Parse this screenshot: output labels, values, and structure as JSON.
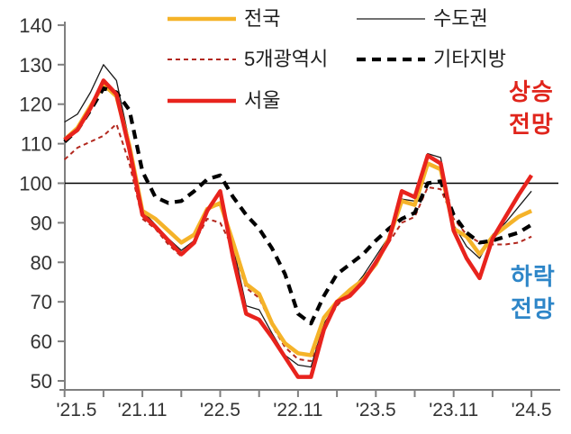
{
  "chart_data": {
    "type": "line",
    "title": "",
    "xlabel": "",
    "ylabel": "",
    "ylim": [
      50,
      140
    ],
    "y_ticks": [
      140,
      130,
      120,
      110,
      100,
      90,
      80,
      70,
      60,
      50
    ],
    "reference_line": 100,
    "grid": false,
    "legend_position": "top",
    "tick_interval_months": 3,
    "label_interval_months": 6,
    "x_tick_labels": [
      "'21.5",
      "'21.11",
      "'22.5",
      "'22.11",
      "'23.5",
      "'23.11",
      "'24.5"
    ],
    "x": [
      "21.05",
      "21.06",
      "21.07",
      "21.08",
      "21.09",
      "21.10",
      "21.11",
      "21.12",
      "22.01",
      "22.02",
      "22.03",
      "22.04",
      "22.05",
      "22.06",
      "22.07",
      "22.08",
      "22.09",
      "22.10",
      "22.11",
      "22.12",
      "23.01",
      "23.02",
      "23.03",
      "23.04",
      "23.05",
      "23.06",
      "23.07",
      "23.08",
      "23.09",
      "23.10",
      "23.11",
      "23.12",
      "24.01",
      "24.02",
      "24.03",
      "24.04",
      "24.05"
    ],
    "series": [
      {
        "name": "전국",
        "key": "nationwide",
        "color": "#F5B329",
        "width": 4.5,
        "dash": null,
        "z": 3,
        "values": [
          111,
          114,
          119.5,
          125,
          122,
          109.5,
          93,
          91,
          88,
          85,
          87,
          93.5,
          95,
          85,
          74.5,
          72,
          64.5,
          59.5,
          57,
          56.5,
          66,
          70,
          73,
          75.5,
          79.5,
          86,
          95.5,
          94.5,
          105,
          103.5,
          88.5,
          86.5,
          82,
          86.5,
          89,
          91.5,
          93
        ]
      },
      {
        "name": "수도권",
        "key": "sudogwon",
        "color": "#1a1a1a",
        "width": 1.3,
        "dash": null,
        "z": 1,
        "values": [
          115.5,
          117.5,
          123,
          130,
          126,
          110.5,
          93,
          89.5,
          86,
          83,
          85.5,
          93.5,
          94.5,
          84,
          69,
          68,
          62,
          56.5,
          54,
          53.5,
          64.5,
          69.5,
          72.5,
          76.5,
          81.5,
          86.5,
          96,
          95.5,
          107.5,
          106.5,
          89.5,
          84,
          81,
          87,
          90,
          94,
          98
        ]
      },
      {
        "name": "5개광역시",
        "key": "five-metro-cities",
        "color": "#B2281E",
        "width": 2,
        "dash": "5,4",
        "z": 2,
        "values": [
          106,
          109,
          110.5,
          112,
          115,
          105,
          91,
          88.5,
          84.5,
          81.5,
          85,
          91,
          90,
          83.5,
          73.5,
          71,
          64,
          58.5,
          55.5,
          55,
          63.5,
          69,
          72.5,
          76,
          80,
          85,
          90,
          91.5,
          99,
          98.5,
          91,
          87,
          85,
          84.5,
          84.5,
          85,
          86.5
        ]
      },
      {
        "name": "기타지방",
        "key": "other-regions",
        "color": "#000000",
        "width": 4.2,
        "dash": "10,7",
        "z": 4,
        "values": [
          110.5,
          113.5,
          118.5,
          124,
          123,
          118.5,
          103,
          96.5,
          95,
          95.5,
          98,
          101,
          102,
          96.5,
          92,
          88.5,
          83.5,
          77,
          67,
          64.5,
          71.5,
          77,
          79.5,
          82,
          85.5,
          88.5,
          91,
          92.5,
          100,
          100.5,
          92,
          87.5,
          85,
          85.5,
          86.5,
          87.5,
          89.5
        ]
      },
      {
        "name": "서울",
        "key": "seoul",
        "color": "#E8231D",
        "width": 4.5,
        "dash": null,
        "z": 5,
        "values": [
          111,
          113.5,
          119,
          126,
          122.5,
          108.5,
          92,
          89,
          85.5,
          82,
          85,
          93,
          98,
          81,
          67,
          65.5,
          61,
          56,
          51,
          51,
          63,
          70,
          71.5,
          75,
          80,
          85.5,
          98,
          96.5,
          107,
          105,
          88,
          81,
          76,
          86,
          91.5,
          97,
          102
        ]
      }
    ],
    "annotations": [
      {
        "text": "상승\n전망",
        "color": "#E0251C",
        "position": "right-upper"
      },
      {
        "text": "하락\n전망",
        "color": "#2E86C8",
        "position": "right-lower"
      }
    ],
    "axis_color": "#7f7f7f",
    "tick_label_color": "#333333"
  }
}
